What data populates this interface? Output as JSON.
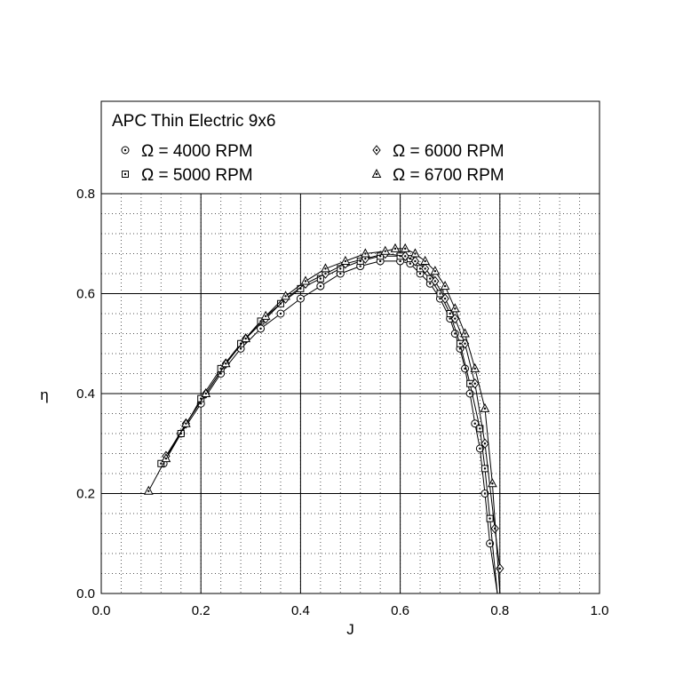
{
  "chart_data": {
    "type": "line",
    "title": "APC Thin Electric 9x6",
    "xlabel": "J",
    "ylabel": "η",
    "xlim": [
      0.0,
      1.0
    ],
    "ylim": [
      0.0,
      0.8
    ],
    "x_ticks": [
      "0.0",
      "0.2",
      "0.4",
      "0.6",
      "0.8",
      "1.0"
    ],
    "y_ticks": [
      "0.0",
      "0.2",
      "0.4",
      "0.6",
      "0.8"
    ],
    "grid": "major solid, minor dotted",
    "legend_placement": "top, inside box with title",
    "series": [
      {
        "name": "Ω = 4000 RPM",
        "marker": "circle-dot",
        "x": [
          0.125,
          0.16,
          0.2,
          0.24,
          0.28,
          0.32,
          0.36,
          0.4,
          0.44,
          0.48,
          0.52,
          0.56,
          0.6,
          0.62,
          0.64,
          0.66,
          0.68,
          0.7,
          0.71,
          0.72,
          0.73,
          0.74,
          0.75,
          0.76,
          0.77,
          0.78,
          0.795
        ],
        "y": [
          0.26,
          0.32,
          0.38,
          0.44,
          0.49,
          0.53,
          0.56,
          0.59,
          0.615,
          0.64,
          0.655,
          0.665,
          0.665,
          0.66,
          0.64,
          0.62,
          0.59,
          0.55,
          0.52,
          0.49,
          0.45,
          0.4,
          0.34,
          0.29,
          0.2,
          0.1,
          0.0
        ]
      },
      {
        "name": "Ω = 5000 RPM",
        "marker": "square-dot",
        "x": [
          0.12,
          0.16,
          0.2,
          0.24,
          0.28,
          0.32,
          0.36,
          0.4,
          0.44,
          0.48,
          0.52,
          0.56,
          0.6,
          0.62,
          0.64,
          0.66,
          0.68,
          0.7,
          0.72,
          0.74,
          0.76,
          0.77,
          0.78,
          0.795
        ],
        "y": [
          0.26,
          0.32,
          0.39,
          0.45,
          0.5,
          0.545,
          0.58,
          0.61,
          0.63,
          0.65,
          0.665,
          0.675,
          0.675,
          0.67,
          0.65,
          0.63,
          0.6,
          0.56,
          0.5,
          0.42,
          0.33,
          0.25,
          0.15,
          0.0
        ]
      },
      {
        "name": "Ω = 6000 RPM",
        "marker": "diamond-dot",
        "x": [
          0.13,
          0.17,
          0.21,
          0.25,
          0.29,
          0.33,
          0.37,
          0.41,
          0.45,
          0.49,
          0.53,
          0.57,
          0.61,
          0.63,
          0.65,
          0.67,
          0.69,
          0.71,
          0.73,
          0.75,
          0.77,
          0.79,
          0.8
        ],
        "y": [
          0.275,
          0.34,
          0.4,
          0.46,
          0.51,
          0.55,
          0.59,
          0.62,
          0.64,
          0.66,
          0.67,
          0.68,
          0.675,
          0.665,
          0.65,
          0.625,
          0.59,
          0.55,
          0.5,
          0.42,
          0.3,
          0.13,
          0.05
        ]
      },
      {
        "name": "Ω = 6700 RPM",
        "marker": "triangle-dot",
        "x": [
          0.095,
          0.13,
          0.17,
          0.21,
          0.25,
          0.29,
          0.33,
          0.37,
          0.41,
          0.45,
          0.49,
          0.53,
          0.57,
          0.59,
          0.61,
          0.63,
          0.65,
          0.67,
          0.69,
          0.71,
          0.73,
          0.75,
          0.77,
          0.785,
          0.8
        ],
        "y": [
          0.205,
          0.27,
          0.34,
          0.4,
          0.46,
          0.51,
          0.555,
          0.595,
          0.625,
          0.65,
          0.665,
          0.68,
          0.685,
          0.69,
          0.69,
          0.68,
          0.665,
          0.645,
          0.615,
          0.57,
          0.52,
          0.45,
          0.37,
          0.22,
          0.0
        ]
      }
    ]
  }
}
